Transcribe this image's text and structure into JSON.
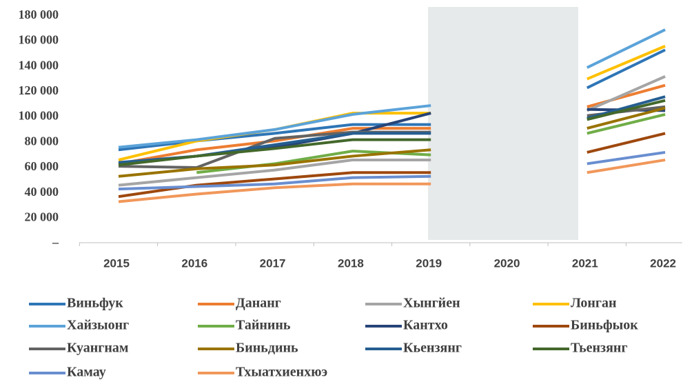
{
  "chart_data": {
    "type": "line",
    "categories": [
      "2015",
      "2016",
      "2017",
      "2018",
      "2019",
      "2020",
      "2021",
      "2022"
    ],
    "ylim": [
      0,
      187000
    ],
    "yticks": [
      {
        "value": 0,
        "label": "–"
      },
      {
        "value": 20000,
        "label": "20 000"
      },
      {
        "value": 40000,
        "label": "40 000"
      },
      {
        "value": 60000,
        "label": "60 000"
      },
      {
        "value": 80000,
        "label": "80 000"
      },
      {
        "value": 100000,
        "label": "100 000"
      },
      {
        "value": 120000,
        "label": "120 000"
      },
      {
        "value": 140000,
        "label": "140 000"
      },
      {
        "value": 160000,
        "label": "160 000"
      },
      {
        "value": 180000,
        "label": "180 000"
      }
    ],
    "grid": false,
    "series": [
      {
        "name": "Виньфук",
        "color": "#2e75b6",
        "values": [
          74000,
          81000,
          87000,
          94000,
          94000,
          null,
          123000,
          153000
        ]
      },
      {
        "name": "Дананг",
        "color": "#ed7d31",
        "values": [
          63000,
          74000,
          81000,
          91000,
          91000,
          null,
          108000,
          125000
        ]
      },
      {
        "name": "Хынгйен",
        "color": "#a5a5a5",
        "values": [
          46000,
          52000,
          58000,
          66000,
          66000,
          null,
          105000,
          132000
        ]
      },
      {
        "name": "Лонган",
        "color": "#ffc000",
        "values": [
          66000,
          81000,
          90000,
          103000,
          103000,
          null,
          130000,
          156000
        ]
      },
      {
        "name": "Хайзыонг",
        "color": "#5ba3d9",
        "values": [
          76000,
          82000,
          90000,
          102000,
          109000,
          null,
          139000,
          169000
        ]
      },
      {
        "name": "Тайнинь",
        "color": "#70ad47",
        "values": [
          null,
          56000,
          63000,
          73000,
          70000,
          null,
          87000,
          102000
        ]
      },
      {
        "name": "Кантхо",
        "color": "#264478",
        "values": [
          63000,
          69000,
          76000,
          87000,
          103000,
          null,
          106000,
          105000
        ]
      },
      {
        "name": "Биньфыок",
        "color": "#9e480e",
        "values": [
          37000,
          46000,
          51000,
          56000,
          56000,
          null,
          72000,
          87000
        ]
      },
      {
        "name": "Куангнам",
        "color": "#636363",
        "values": [
          61000,
          60000,
          83000,
          88000,
          88000,
          null,
          101000,
          108000
        ]
      },
      {
        "name": "Биньдинь",
        "color": "#997300",
        "values": [
          53000,
          59000,
          62000,
          69000,
          74000,
          null,
          91000,
          107000
        ]
      },
      {
        "name": "Кьензянг",
        "color": "#255e91",
        "values": [
          64000,
          69000,
          78000,
          87000,
          87000,
          null,
          99000,
          116000
        ]
      },
      {
        "name": "Тьензянг",
        "color": "#43682b",
        "values": [
          62000,
          69000,
          75000,
          82000,
          82000,
          null,
          98000,
          113000
        ]
      },
      {
        "name": "Камау",
        "color": "#698ed0",
        "values": [
          43000,
          45000,
          47000,
          52000,
          53000,
          null,
          63000,
          72000
        ]
      },
      {
        "name": "Тхыатхиенхюэ",
        "color": "#f1975a",
        "values": [
          33000,
          39000,
          44000,
          47000,
          47000,
          null,
          56000,
          66000
        ]
      }
    ]
  }
}
